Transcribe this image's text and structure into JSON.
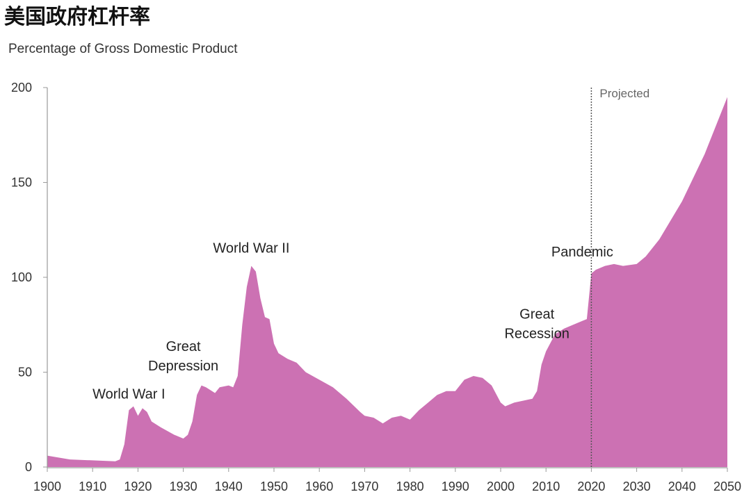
{
  "chart_data": {
    "type": "area",
    "title": "美国政府杠杆率",
    "subtitle": "Percentage of Gross Domestic Product",
    "xlim": [
      1900,
      2050
    ],
    "ylim": [
      0,
      200
    ],
    "x_ticks": [
      "1900",
      "1910",
      "1920",
      "1930",
      "1940",
      "1950",
      "1960",
      "1970",
      "1980",
      "1990",
      "2000",
      "2010",
      "2020",
      "2030",
      "2040",
      "2050"
    ],
    "y_ticks": [
      "0",
      "50",
      "100",
      "150",
      "200"
    ],
    "grid": false,
    "area_color": "#cc71b3",
    "projection_start": 2020,
    "projection_label": "Projected",
    "x": [
      1900,
      1905,
      1910,
      1915,
      1916,
      1917,
      1918,
      1919,
      1920,
      1921,
      1922,
      1923,
      1925,
      1928,
      1930,
      1931,
      1932,
      1933,
      1934,
      1935,
      1937,
      1938,
      1940,
      1941,
      1942,
      1943,
      1944,
      1945,
      1946,
      1947,
      1948,
      1949,
      1950,
      1951,
      1953,
      1955,
      1957,
      1960,
      1963,
      1966,
      1969,
      1970,
      1972,
      1974,
      1976,
      1978,
      1980,
      1982,
      1984,
      1986,
      1988,
      1990,
      1992,
      1994,
      1996,
      1998,
      2000,
      2001,
      2003,
      2005,
      2007,
      2008,
      2009,
      2010,
      2012,
      2014,
      2016,
      2018,
      2019,
      2020,
      2021,
      2023,
      2025,
      2027,
      2030,
      2032,
      2035,
      2040,
      2045,
      2050
    ],
    "y": [
      6,
      4,
      3.5,
      3,
      4,
      12,
      30,
      32,
      27,
      31,
      29,
      24,
      21,
      17,
      15,
      17,
      24,
      38,
      43,
      42,
      39,
      42,
      43,
      42,
      48,
      75,
      95,
      106,
      103,
      89,
      79,
      78,
      65,
      60,
      57,
      55,
      50,
      46,
      42,
      36,
      29,
      27,
      26,
      23,
      26,
      27,
      25,
      30,
      34,
      38,
      40,
      40,
      46,
      48,
      47,
      43,
      34,
      32,
      34,
      35,
      36,
      40,
      54,
      61,
      70,
      73,
      75,
      77,
      78,
      102,
      104,
      106,
      107,
      106,
      107,
      111,
      120,
      140,
      165,
      195
    ],
    "annotations": [
      {
        "lines": [
          "World War I"
        ],
        "x": 1918,
        "y": 36
      },
      {
        "lines": [
          "Great",
          "Depression"
        ],
        "x": 1930,
        "y": 51
      },
      {
        "lines": [
          "World War II"
        ],
        "x": 1945,
        "y": 113
      },
      {
        "lines": [
          "Great",
          "Recession"
        ],
        "x": 2008,
        "y": 68
      },
      {
        "lines": [
          "Pandemic"
        ],
        "x": 2018,
        "y": 111
      }
    ]
  }
}
